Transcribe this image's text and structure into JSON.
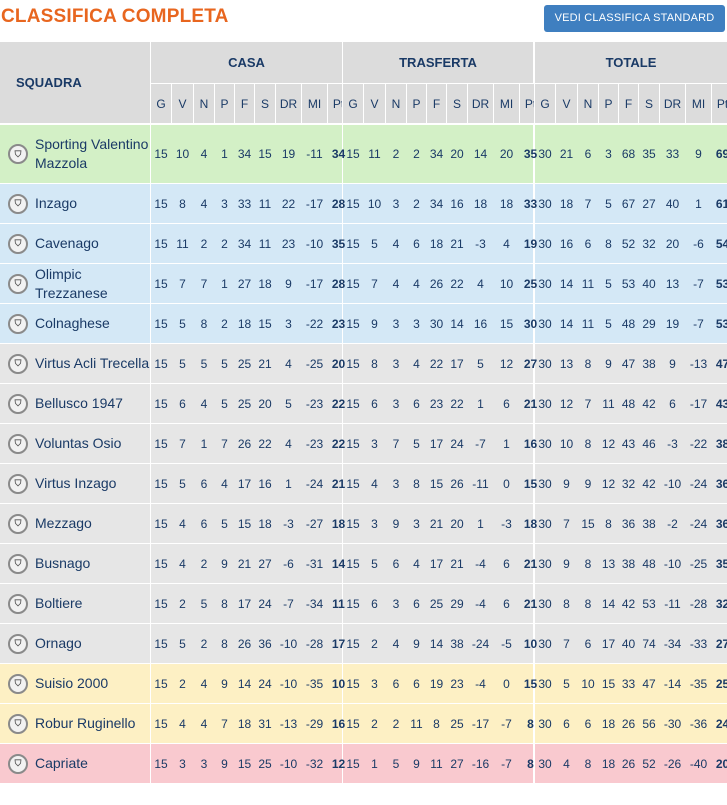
{
  "page": {
    "title": "CLASSIFICA COMPLETA",
    "standard_button": "VEDI CLASSIFICA STANDARD"
  },
  "table": {
    "team_header": "SQUADRA",
    "groups": [
      "CASA",
      "TRASFERTA",
      "TOTALE"
    ],
    "sub_headers": [
      "G",
      "V",
      "N",
      "P",
      "F",
      "S",
      "DR",
      "MI",
      "Pt"
    ],
    "zone_colors": {
      "promotion": "#d3f0c6",
      "playoff": "#d4e8f6",
      "safe": "#e6e6e6",
      "playout": "#fdf0c4",
      "relegation": "#f9c9cf"
    },
    "rows": [
      {
        "team": "Sporting Valentino Mazzola",
        "zone": "promotion",
        "crest": "sporting-valentino-mazzola-crest-icon",
        "casa": [
          "15",
          "10",
          "4",
          "1",
          "34",
          "15",
          "19",
          "-11",
          "34"
        ],
        "trasferta": [
          "15",
          "11",
          "2",
          "2",
          "34",
          "20",
          "14",
          "20",
          "35"
        ],
        "totale": [
          "30",
          "21",
          "6",
          "3",
          "68",
          "35",
          "33",
          "9",
          "69"
        ]
      },
      {
        "team": "Inzago",
        "zone": "playoff",
        "crest": "inzago-crest-icon",
        "casa": [
          "15",
          "8",
          "4",
          "3",
          "33",
          "11",
          "22",
          "-17",
          "28"
        ],
        "trasferta": [
          "15",
          "10",
          "3",
          "2",
          "34",
          "16",
          "18",
          "18",
          "33"
        ],
        "totale": [
          "30",
          "18",
          "7",
          "5",
          "67",
          "27",
          "40",
          "1",
          "61"
        ]
      },
      {
        "team": "Cavenago",
        "zone": "playoff",
        "crest": "cavenago-crest-icon",
        "casa": [
          "15",
          "11",
          "2",
          "2",
          "34",
          "11",
          "23",
          "-10",
          "35"
        ],
        "trasferta": [
          "15",
          "5",
          "4",
          "6",
          "18",
          "21",
          "-3",
          "4",
          "19"
        ],
        "totale": [
          "30",
          "16",
          "6",
          "8",
          "52",
          "32",
          "20",
          "-6",
          "54"
        ]
      },
      {
        "team": "Olimpic Trezzanese",
        "zone": "playoff",
        "crest": "olimpic-trezzanese-crest-icon",
        "casa": [
          "15",
          "7",
          "7",
          "1",
          "27",
          "18",
          "9",
          "-17",
          "28"
        ],
        "trasferta": [
          "15",
          "7",
          "4",
          "4",
          "26",
          "22",
          "4",
          "10",
          "25"
        ],
        "totale": [
          "30",
          "14",
          "11",
          "5",
          "53",
          "40",
          "13",
          "-7",
          "53"
        ]
      },
      {
        "team": "Colnaghese",
        "zone": "playoff",
        "crest": "colnaghese-crest-icon",
        "casa": [
          "15",
          "5",
          "8",
          "2",
          "18",
          "15",
          "3",
          "-22",
          "23"
        ],
        "trasferta": [
          "15",
          "9",
          "3",
          "3",
          "30",
          "14",
          "16",
          "15",
          "30"
        ],
        "totale": [
          "30",
          "14",
          "11",
          "5",
          "48",
          "29",
          "19",
          "-7",
          "53"
        ]
      },
      {
        "team": "Virtus Acli Trecella",
        "zone": "safe",
        "crest": "virtus-acli-trecella-crest-icon",
        "casa": [
          "15",
          "5",
          "5",
          "5",
          "25",
          "21",
          "4",
          "-25",
          "20"
        ],
        "trasferta": [
          "15",
          "8",
          "3",
          "4",
          "22",
          "17",
          "5",
          "12",
          "27"
        ],
        "totale": [
          "30",
          "13",
          "8",
          "9",
          "47",
          "38",
          "9",
          "-13",
          "47"
        ]
      },
      {
        "team": "Bellusco 1947",
        "zone": "safe",
        "crest": "bellusco-1947-crest-icon",
        "casa": [
          "15",
          "6",
          "4",
          "5",
          "25",
          "20",
          "5",
          "-23",
          "22"
        ],
        "trasferta": [
          "15",
          "6",
          "3",
          "6",
          "23",
          "22",
          "1",
          "6",
          "21"
        ],
        "totale": [
          "30",
          "12",
          "7",
          "11",
          "48",
          "42",
          "6",
          "-17",
          "43"
        ]
      },
      {
        "team": "Voluntas Osio",
        "zone": "safe",
        "crest": "voluntas-osio-crest-icon",
        "casa": [
          "15",
          "7",
          "1",
          "7",
          "26",
          "22",
          "4",
          "-23",
          "22"
        ],
        "trasferta": [
          "15",
          "3",
          "7",
          "5",
          "17",
          "24",
          "-7",
          "1",
          "16"
        ],
        "totale": [
          "30",
          "10",
          "8",
          "12",
          "43",
          "46",
          "-3",
          "-22",
          "38"
        ]
      },
      {
        "team": "Virtus Inzago",
        "zone": "safe",
        "crest": "virtus-inzago-crest-icon",
        "casa": [
          "15",
          "5",
          "6",
          "4",
          "17",
          "16",
          "1",
          "-24",
          "21"
        ],
        "trasferta": [
          "15",
          "4",
          "3",
          "8",
          "15",
          "26",
          "-11",
          "0",
          "15"
        ],
        "totale": [
          "30",
          "9",
          "9",
          "12",
          "32",
          "42",
          "-10",
          "-24",
          "36"
        ]
      },
      {
        "team": "Mezzago",
        "zone": "safe",
        "crest": "mezzago-crest-icon",
        "casa": [
          "15",
          "4",
          "6",
          "5",
          "15",
          "18",
          "-3",
          "-27",
          "18"
        ],
        "trasferta": [
          "15",
          "3",
          "9",
          "3",
          "21",
          "20",
          "1",
          "-3",
          "18"
        ],
        "totale": [
          "30",
          "7",
          "15",
          "8",
          "36",
          "38",
          "-2",
          "-24",
          "36"
        ]
      },
      {
        "team": "Busnago",
        "zone": "safe",
        "crest": "busnago-crest-icon",
        "casa": [
          "15",
          "4",
          "2",
          "9",
          "21",
          "27",
          "-6",
          "-31",
          "14"
        ],
        "trasferta": [
          "15",
          "5",
          "6",
          "4",
          "17",
          "21",
          "-4",
          "6",
          "21"
        ],
        "totale": [
          "30",
          "9",
          "8",
          "13",
          "38",
          "48",
          "-10",
          "-25",
          "35"
        ]
      },
      {
        "team": "Boltiere",
        "zone": "safe",
        "crest": "boltiere-crest-icon",
        "casa": [
          "15",
          "2",
          "5",
          "8",
          "17",
          "24",
          "-7",
          "-34",
          "11"
        ],
        "trasferta": [
          "15",
          "6",
          "3",
          "6",
          "25",
          "29",
          "-4",
          "6",
          "21"
        ],
        "totale": [
          "30",
          "8",
          "8",
          "14",
          "42",
          "53",
          "-11",
          "-28",
          "32"
        ]
      },
      {
        "team": "Ornago",
        "zone": "safe",
        "crest": "ornago-crest-icon",
        "casa": [
          "15",
          "5",
          "2",
          "8",
          "26",
          "36",
          "-10",
          "-28",
          "17"
        ],
        "trasferta": [
          "15",
          "2",
          "4",
          "9",
          "14",
          "38",
          "-24",
          "-5",
          "10"
        ],
        "totale": [
          "30",
          "7",
          "6",
          "17",
          "40",
          "74",
          "-34",
          "-33",
          "27"
        ]
      },
      {
        "team": "Suisio 2000",
        "zone": "playout",
        "crest": "suisio-2000-crest-icon",
        "casa": [
          "15",
          "2",
          "4",
          "9",
          "14",
          "24",
          "-10",
          "-35",
          "10"
        ],
        "trasferta": [
          "15",
          "3",
          "6",
          "6",
          "19",
          "23",
          "-4",
          "0",
          "15"
        ],
        "totale": [
          "30",
          "5",
          "10",
          "15",
          "33",
          "47",
          "-14",
          "-35",
          "25"
        ]
      },
      {
        "team": "Robur Ruginello",
        "zone": "playout",
        "crest": "robur-ruginello-crest-icon",
        "casa": [
          "15",
          "4",
          "4",
          "7",
          "18",
          "31",
          "-13",
          "-29",
          "16"
        ],
        "trasferta": [
          "15",
          "2",
          "2",
          "11",
          "8",
          "25",
          "-17",
          "-7",
          "8"
        ],
        "totale": [
          "30",
          "6",
          "6",
          "18",
          "26",
          "56",
          "-30",
          "-36",
          "24"
        ]
      },
      {
        "team": "Capriate",
        "zone": "relegation",
        "crest": "capriate-crest-icon",
        "casa": [
          "15",
          "3",
          "3",
          "9",
          "15",
          "25",
          "-10",
          "-32",
          "12"
        ],
        "trasferta": [
          "15",
          "1",
          "5",
          "9",
          "11",
          "27",
          "-16",
          "-7",
          "8"
        ],
        "totale": [
          "30",
          "4",
          "8",
          "18",
          "26",
          "52",
          "-26",
          "-40",
          "20"
        ]
      }
    ]
  }
}
